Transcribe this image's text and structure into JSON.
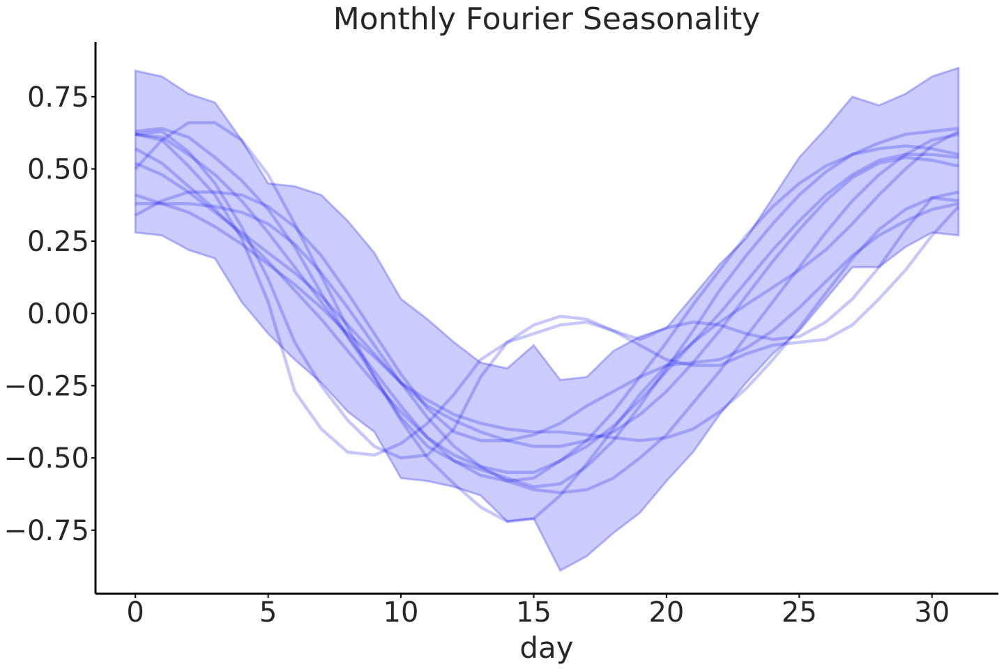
{
  "chart_data": {
    "type": "line",
    "title": "Monthly Fourier Seasonality",
    "xlabel": "day",
    "ylabel": "",
    "xlim": [
      -1.5,
      32.5
    ],
    "ylim": [
      -0.97,
      0.94
    ],
    "xticks": [
      0,
      5,
      10,
      15,
      20,
      25,
      30
    ],
    "xtick_labels": [
      "0",
      "5",
      "10",
      "15",
      "20",
      "25",
      "30"
    ],
    "yticks": [
      0.75,
      0.5,
      0.25,
      0.0,
      -0.25,
      -0.5,
      -0.75
    ],
    "ytick_labels": [
      "0.75",
      "0.50",
      "0.25",
      "0.00",
      "−0.25",
      "−0.50",
      "−0.75"
    ],
    "grid": false,
    "colors": {
      "series": "#0000ee",
      "band": "#0000ee",
      "spine": "#000000",
      "text": "#262626"
    },
    "x": [
      0,
      1,
      2,
      3,
      4,
      5,
      6,
      7,
      8,
      9,
      10,
      11,
      12,
      13,
      14,
      15,
      16,
      17,
      18,
      19,
      20,
      21,
      22,
      23,
      24,
      25,
      26,
      27,
      28,
      29,
      30,
      31
    ],
    "band": {
      "upper": [
        0.84,
        0.82,
        0.76,
        0.73,
        0.6,
        0.45,
        0.44,
        0.41,
        0.32,
        0.21,
        0.05,
        -0.02,
        -0.1,
        -0.17,
        -0.19,
        -0.11,
        -0.23,
        -0.22,
        -0.13,
        -0.08,
        -0.05,
        0.06,
        0.17,
        0.26,
        0.4,
        0.54,
        0.64,
        0.75,
        0.72,
        0.76,
        0.82,
        0.85
      ],
      "lower": [
        0.28,
        0.27,
        0.22,
        0.19,
        0.04,
        -0.07,
        -0.16,
        -0.24,
        -0.34,
        -0.41,
        -0.57,
        -0.58,
        -0.6,
        -0.63,
        -0.72,
        -0.71,
        -0.89,
        -0.84,
        -0.76,
        -0.69,
        -0.58,
        -0.48,
        -0.35,
        -0.24,
        -0.14,
        -0.06,
        0.05,
        0.16,
        0.16,
        0.23,
        0.28,
        0.27
      ]
    },
    "series": [
      {
        "values": [
          0.63,
          0.64,
          0.61,
          0.54,
          0.46,
          0.36,
          0.23,
          0.07,
          -0.08,
          -0.22,
          -0.36,
          -0.46,
          -0.51,
          -0.54,
          -0.57,
          -0.6,
          -0.59,
          -0.53,
          -0.44,
          -0.32,
          -0.19,
          -0.06,
          0.08,
          0.2,
          0.31,
          0.41,
          0.49,
          0.55,
          0.59,
          0.62,
          0.63,
          0.64
        ]
      },
      {
        "values": [
          0.62,
          0.61,
          0.55,
          0.48,
          0.39,
          0.28,
          0.16,
          0.04,
          -0.08,
          -0.2,
          -0.32,
          -0.43,
          -0.51,
          -0.56,
          -0.58,
          -0.57,
          -0.51,
          -0.44,
          -0.34,
          -0.22,
          -0.1,
          0.03,
          0.15,
          0.27,
          0.37,
          0.45,
          0.51,
          0.55,
          0.57,
          0.58,
          0.57,
          0.55
        ]
      },
      {
        "values": [
          0.57,
          0.52,
          0.44,
          0.36,
          0.27,
          0.18,
          0.08,
          -0.02,
          -0.13,
          -0.24,
          -0.34,
          -0.43,
          -0.49,
          -0.53,
          -0.55,
          -0.55,
          -0.51,
          -0.46,
          -0.39,
          -0.3,
          -0.2,
          -0.1,
          0.0,
          0.11,
          0.22,
          0.32,
          0.41,
          0.48,
          0.53,
          0.55,
          0.55,
          0.54
        ]
      },
      {
        "values": [
          0.52,
          0.48,
          0.42,
          0.35,
          0.28,
          0.21,
          0.14,
          0.06,
          -0.04,
          -0.14,
          -0.24,
          -0.32,
          -0.37,
          -0.41,
          -0.44,
          -0.46,
          -0.46,
          -0.44,
          -0.41,
          -0.35,
          -0.27,
          -0.17,
          -0.06,
          0.06,
          0.18,
          0.29,
          0.39,
          0.47,
          0.52,
          0.54,
          0.53,
          0.51
        ]
      },
      {
        "values": [
          0.38,
          0.38,
          0.38,
          0.37,
          0.35,
          0.31,
          0.24,
          0.14,
          0.02,
          -0.11,
          -0.24,
          -0.36,
          -0.46,
          -0.53,
          -0.58,
          -0.61,
          -0.62,
          -0.61,
          -0.57,
          -0.5,
          -0.42,
          -0.31,
          -0.2,
          -0.08,
          0.04,
          0.16,
          0.28,
          0.39,
          0.48,
          0.55,
          0.6,
          0.62
        ]
      },
      {
        "values": [
          0.41,
          0.38,
          0.35,
          0.3,
          0.24,
          0.17,
          0.1,
          0.02,
          -0.07,
          -0.15,
          -0.24,
          -0.3,
          -0.35,
          -0.38,
          -0.4,
          -0.41,
          -0.41,
          -0.42,
          -0.43,
          -0.44,
          -0.43,
          -0.4,
          -0.34,
          -0.26,
          -0.16,
          -0.05,
          0.07,
          0.19,
          0.29,
          0.36,
          0.4,
          0.39
        ]
      },
      {
        "values": [
          0.34,
          0.39,
          0.42,
          0.42,
          0.41,
          0.37,
          0.3,
          0.2,
          0.07,
          -0.07,
          -0.21,
          -0.33,
          -0.41,
          -0.44,
          -0.44,
          -0.42,
          -0.38,
          -0.32,
          -0.27,
          -0.22,
          -0.18,
          -0.17,
          -0.16,
          -0.12,
          -0.06,
          0.02,
          0.11,
          0.2,
          0.27,
          0.32,
          0.36,
          0.38
        ]
      },
      {
        "values": [
          0.5,
          0.6,
          0.66,
          0.66,
          0.6,
          0.48,
          0.31,
          0.13,
          -0.05,
          -0.22,
          -0.37,
          -0.5,
          -0.59,
          -0.67,
          -0.72,
          -0.71,
          -0.63,
          -0.52,
          -0.4,
          -0.28,
          -0.18,
          -0.1,
          -0.03,
          0.03,
          0.09,
          0.15,
          0.22,
          0.31,
          0.41,
          0.5,
          0.58,
          0.63
        ]
      },
      {
        "values": [
          0.62,
          0.63,
          0.56,
          0.45,
          0.3,
          0.12,
          -0.1,
          -0.25,
          -0.37,
          -0.46,
          -0.5,
          -0.49,
          -0.4,
          -0.22,
          -0.1,
          -0.04,
          -0.01,
          -0.02,
          -0.06,
          -0.11,
          -0.16,
          -0.18,
          -0.18,
          -0.14,
          -0.11,
          -0.1,
          -0.09,
          -0.04,
          0.05,
          0.15,
          0.27,
          0.37
        ]
      },
      {
        "values": [
          0.62,
          0.6,
          0.51,
          0.41,
          0.26,
          0.04,
          -0.27,
          -0.4,
          -0.48,
          -0.49,
          -0.45,
          -0.38,
          -0.28,
          -0.16,
          -0.1,
          -0.07,
          -0.04,
          -0.03,
          -0.06,
          -0.09,
          -0.05,
          -0.03,
          -0.04,
          -0.07,
          -0.09,
          -0.08,
          -0.03,
          0.05,
          0.16,
          0.29,
          0.4,
          0.42
        ]
      }
    ]
  }
}
